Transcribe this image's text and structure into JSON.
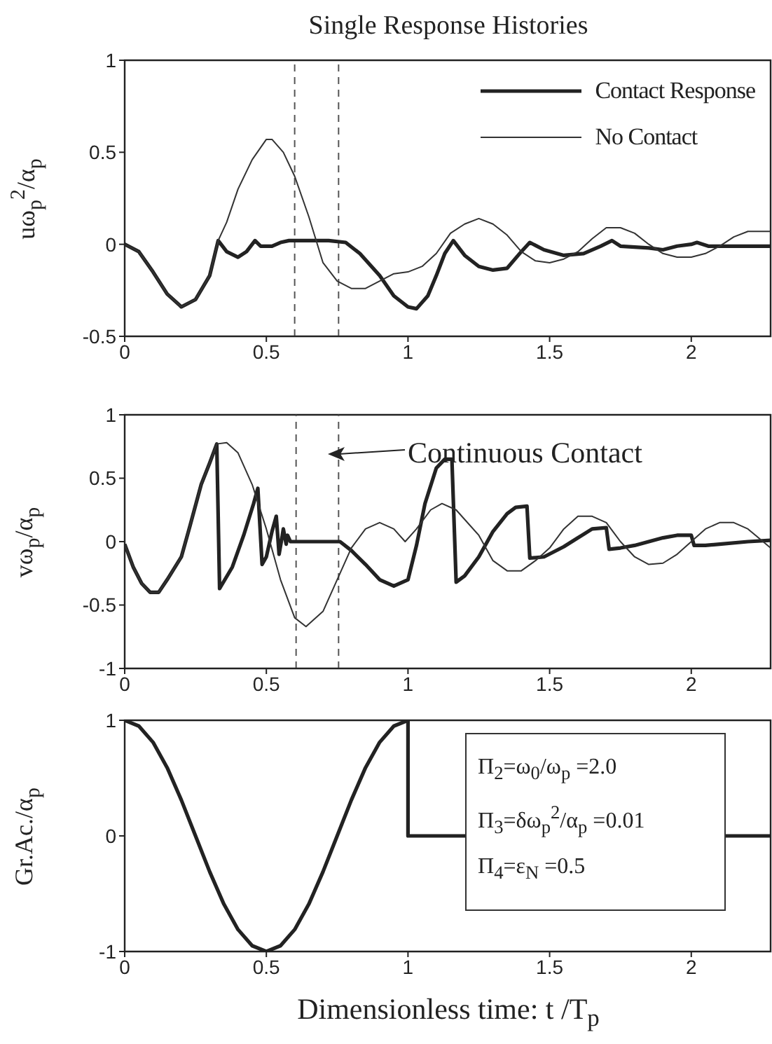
{
  "chart_data": [
    {
      "type": "line",
      "title": "Single Response Histories",
      "ylabel": "uω$_{p}$$^{2}$/α$_{p}$",
      "xlim": [
        0,
        2.28
      ],
      "xticks": [
        0,
        0.5,
        1,
        1.5,
        2
      ],
      "ylim": [
        -0.5,
        1
      ],
      "yticks": [
        -0.5,
        0,
        0.5,
        1
      ],
      "grid": false,
      "legend": "top right",
      "ref_lines": [
        {
          "axis": "x",
          "value": 0.6,
          "line_style": "dashed",
          "color": "#555555"
        },
        {
          "axis": "x",
          "value": 0.755,
          "line_style": "dashed",
          "color": "#555555"
        }
      ],
      "series": [
        {
          "name": "Contact Response",
          "color": "#222222",
          "x": [
            0,
            0.05,
            0.1,
            0.15,
            0.2,
            0.25,
            0.3,
            0.33,
            0.36,
            0.4,
            0.43,
            0.46,
            0.48,
            0.52,
            0.55,
            0.58,
            0.65,
            0.72,
            0.78,
            0.83,
            0.9,
            0.95,
            1.0,
            1.03,
            1.07,
            1.1,
            1.13,
            1.16,
            1.2,
            1.25,
            1.3,
            1.35,
            1.4,
            1.43,
            1.48,
            1.55,
            1.62,
            1.68,
            1.72,
            1.75,
            1.85,
            1.9,
            1.95,
            2.0,
            2.02,
            2.06,
            2.15,
            2.28
          ],
          "values": [
            0,
            -0.04,
            -0.15,
            -0.27,
            -0.34,
            -0.3,
            -0.17,
            0.02,
            -0.04,
            -0.07,
            -0.04,
            0.02,
            -0.01,
            -0.01,
            0.01,
            0.02,
            0.02,
            0.02,
            0.01,
            -0.05,
            -0.17,
            -0.28,
            -0.34,
            -0.35,
            -0.28,
            -0.17,
            -0.05,
            0.02,
            -0.06,
            -0.12,
            -0.14,
            -0.13,
            -0.04,
            0.01,
            -0.03,
            -0.06,
            -0.05,
            -0.01,
            0.02,
            -0.01,
            -0.02,
            -0.03,
            -0.01,
            0,
            0.01,
            -0.01,
            -0.01,
            -0.01
          ]
        },
        {
          "name": "No Contact",
          "color": "#333333",
          "x": [
            0,
            0.05,
            0.1,
            0.15,
            0.2,
            0.25,
            0.3,
            0.33,
            0.36,
            0.4,
            0.45,
            0.5,
            0.52,
            0.56,
            0.6,
            0.65,
            0.7,
            0.75,
            0.8,
            0.85,
            0.9,
            0.95,
            1.0,
            1.05,
            1.1,
            1.15,
            1.2,
            1.25,
            1.3,
            1.35,
            1.4,
            1.45,
            1.5,
            1.55,
            1.6,
            1.65,
            1.7,
            1.75,
            1.8,
            1.85,
            1.9,
            1.95,
            2.0,
            2.05,
            2.1,
            2.15,
            2.2,
            2.28
          ],
          "values": [
            0,
            -0.04,
            -0.15,
            -0.27,
            -0.34,
            -0.3,
            -0.17,
            0.02,
            0.12,
            0.3,
            0.46,
            0.57,
            0.57,
            0.5,
            0.37,
            0.15,
            -0.1,
            -0.2,
            -0.24,
            -0.24,
            -0.2,
            -0.16,
            -0.15,
            -0.12,
            -0.05,
            0.06,
            0.11,
            0.14,
            0.11,
            0.05,
            -0.04,
            -0.09,
            -0.1,
            -0.08,
            -0.04,
            0.03,
            0.09,
            0.09,
            0.06,
            0,
            -0.05,
            -0.07,
            -0.07,
            -0.05,
            -0.01,
            0.04,
            0.07,
            0.07
          ]
        }
      ]
    },
    {
      "type": "line",
      "ylabel": "vω$_{p}$/α$_{p}$",
      "xlim": [
        0,
        2.28
      ],
      "xticks": [
        0,
        0.5,
        1,
        1.5,
        2
      ],
      "ylim": [
        -1,
        1
      ],
      "yticks": [
        -1,
        -0.5,
        0,
        0.5,
        1
      ],
      "grid": false,
      "ref_lines": [
        {
          "axis": "x",
          "value": 0.605,
          "line_style": "dashed",
          "color": "#555555"
        },
        {
          "axis": "x",
          "value": 0.755,
          "line_style": "dashed",
          "color": "#555555"
        }
      ],
      "annotations": [
        "Continuous Contact"
      ],
      "series": [
        {
          "color": "#222222",
          "x": [
            0,
            0.03,
            0.06,
            0.09,
            0.12,
            0.15,
            0.2,
            0.23,
            0.27,
            0.3,
            0.325,
            0.335,
            0.38,
            0.42,
            0.455,
            0.47,
            0.485,
            0.5,
            0.52,
            0.535,
            0.545,
            0.555,
            0.56,
            0.57,
            0.575,
            0.585,
            0.6,
            0.76,
            0.8,
            0.85,
            0.9,
            0.95,
            1.0,
            1.03,
            1.06,
            1.1,
            1.13,
            1.155,
            1.17,
            1.2,
            1.25,
            1.3,
            1.35,
            1.38,
            1.42,
            1.43,
            1.48,
            1.55,
            1.6,
            1.65,
            1.7,
            1.71,
            1.75,
            1.8,
            1.9,
            1.95,
            2.0,
            2.01,
            2.05,
            2.1,
            2.2,
            2.28
          ],
          "values": [
            -0.02,
            -0.2,
            -0.33,
            -0.4,
            -0.4,
            -0.3,
            -0.12,
            0.12,
            0.45,
            0.62,
            0.77,
            -0.37,
            -0.2,
            0.05,
            0.3,
            0.42,
            -0.18,
            -0.12,
            0.08,
            0.2,
            -0.1,
            0.03,
            0.1,
            -0.02,
            0.05,
            0,
            0,
            0,
            -0.07,
            -0.18,
            -0.3,
            -0.35,
            -0.3,
            -0.03,
            0.3,
            0.58,
            0.65,
            0.65,
            -0.32,
            -0.27,
            -0.12,
            0.08,
            0.22,
            0.27,
            0.28,
            -0.13,
            -0.12,
            -0.04,
            0.03,
            0.1,
            0.11,
            -0.06,
            -0.05,
            -0.03,
            0.03,
            0.05,
            0.05,
            -0.03,
            -0.03,
            -0.02,
            0,
            0.01
          ]
        },
        {
          "color": "#333333",
          "x": [
            0,
            0.03,
            0.06,
            0.09,
            0.12,
            0.15,
            0.2,
            0.23,
            0.27,
            0.3,
            0.325,
            0.36,
            0.4,
            0.45,
            0.5,
            0.55,
            0.6,
            0.64,
            0.7,
            0.75,
            0.8,
            0.85,
            0.9,
            0.95,
            0.99,
            1.03,
            1.08,
            1.12,
            1.17,
            1.25,
            1.3,
            1.35,
            1.4,
            1.45,
            1.5,
            1.55,
            1.6,
            1.65,
            1.7,
            1.75,
            1.8,
            1.85,
            1.9,
            1.95,
            2.0,
            2.05,
            2.1,
            2.15,
            2.2,
            2.28
          ],
          "values": [
            -0.02,
            -0.2,
            -0.33,
            -0.4,
            -0.4,
            -0.3,
            -0.12,
            0.12,
            0.45,
            0.62,
            0.77,
            0.78,
            0.7,
            0.45,
            0.1,
            -0.3,
            -0.6,
            -0.67,
            -0.55,
            -0.3,
            -0.05,
            0.1,
            0.15,
            0.1,
            0,
            0.1,
            0.25,
            0.3,
            0.25,
            0.05,
            -0.15,
            -0.23,
            -0.23,
            -0.15,
            -0.05,
            0.1,
            0.2,
            0.2,
            0.15,
            0,
            -0.12,
            -0.18,
            -0.17,
            -0.1,
            0,
            0.1,
            0.15,
            0.15,
            0.1,
            -0.05
          ]
        }
      ]
    },
    {
      "type": "line",
      "ylabel": "Gr.Ac./α$_{p}$",
      "xlabel": "Dimensionless time: t /T$_{p}$",
      "xlim": [
        0,
        2.28
      ],
      "xticks": [
        0,
        0.5,
        1,
        1.5,
        2
      ],
      "ylim": [
        -1,
        1
      ],
      "yticks": [
        -1,
        0,
        1
      ],
      "grid": false,
      "annotations": [
        "Π$_{2}$=ω$_{0}$/ω$_{p}$ =2.0",
        "Π$_{3}$=δω$_{p}$$^{2}$/α$_{p}$ =0.01",
        "Π$_{4}$=ε$_{N}$ =0.5"
      ],
      "series": [
        {
          "color": "#222222",
          "x": [
            0,
            0.05,
            0.1,
            0.15,
            0.2,
            0.25,
            0.3,
            0.35,
            0.4,
            0.45,
            0.5,
            0.55,
            0.6,
            0.65,
            0.7,
            0.75,
            0.8,
            0.85,
            0.9,
            0.95,
            1,
            1,
            2.28
          ],
          "values": [
            1,
            0.95,
            0.81,
            0.59,
            0.31,
            0,
            -0.31,
            -0.59,
            -0.81,
            -0.95,
            -1,
            -0.95,
            -0.81,
            -0.59,
            -0.31,
            0,
            0.31,
            0.59,
            0.81,
            0.95,
            1,
            0,
            0
          ]
        }
      ]
    }
  ]
}
